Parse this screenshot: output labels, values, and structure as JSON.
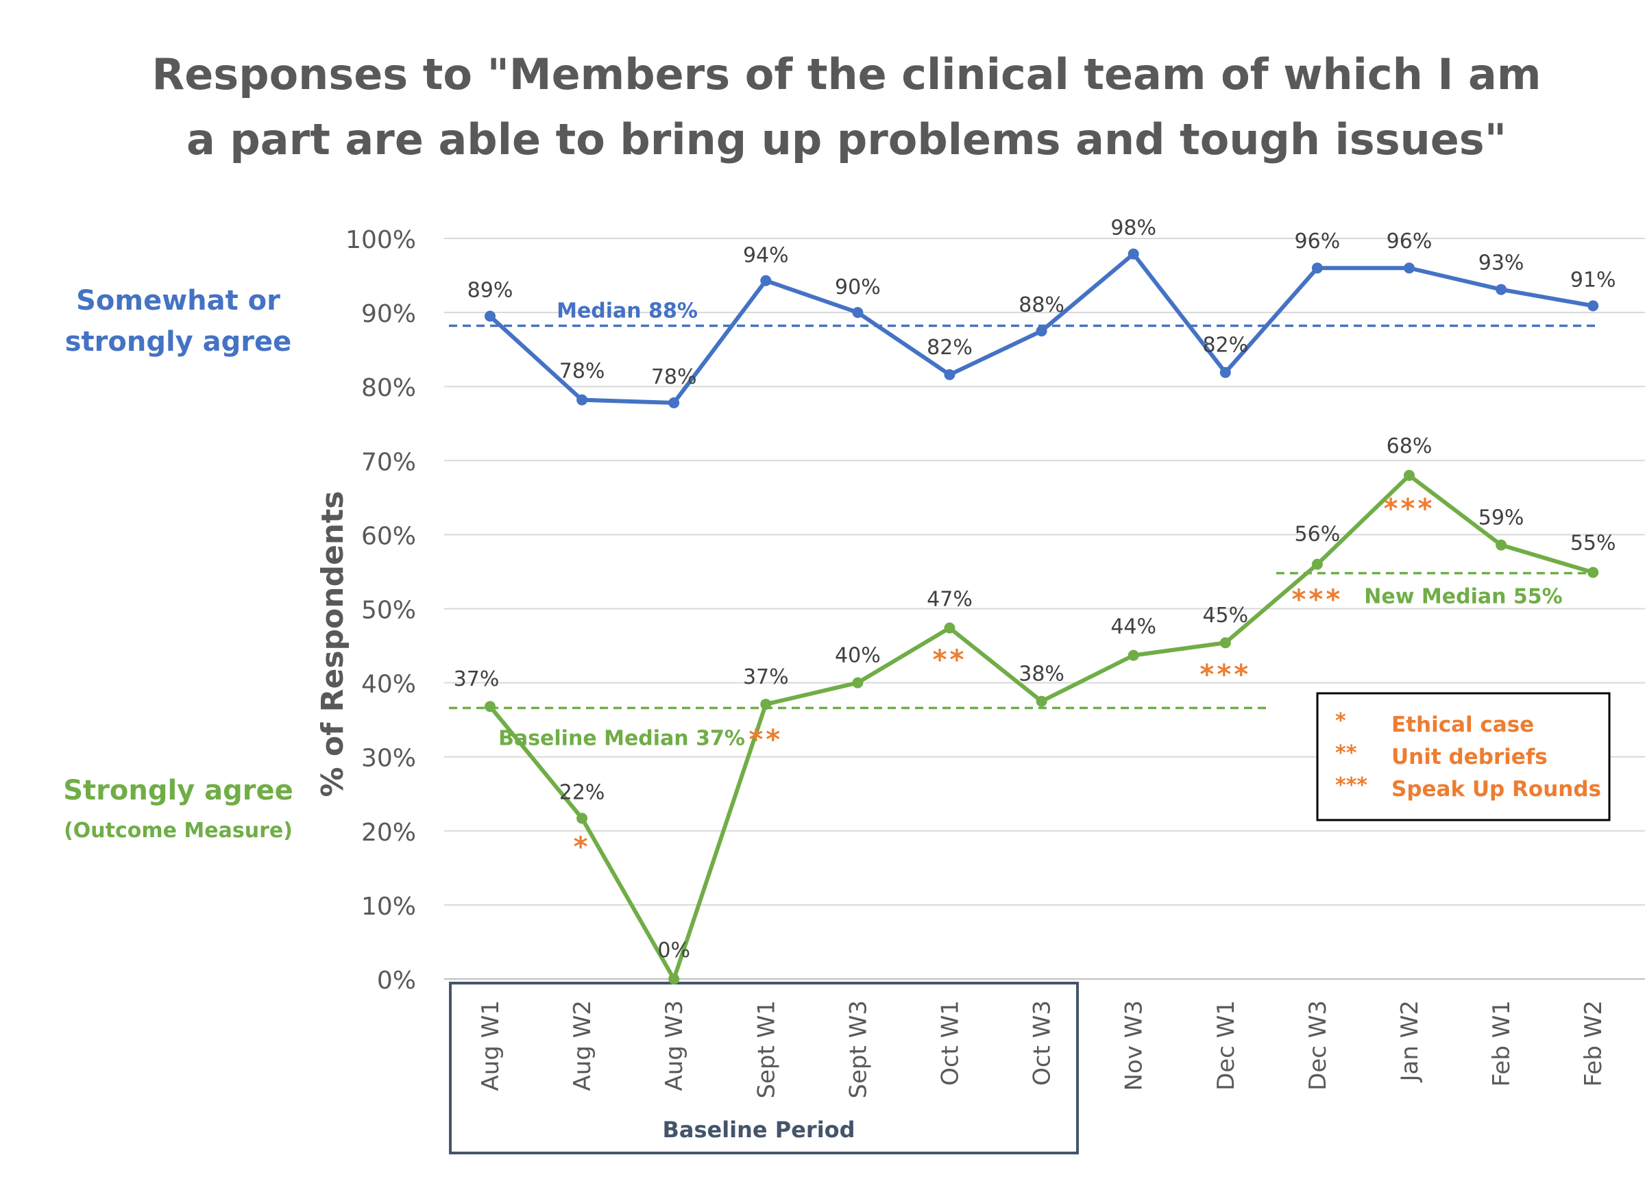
{
  "chart_data": {
    "type": "line",
    "title_lines": [
      "Responses to \"Members of the clinical team of which I am",
      "a part are able to bring up problems and tough issues\""
    ],
    "ylabel": "% of Respondents",
    "ylim": [
      0,
      100
    ],
    "y_ticks": [
      "0%",
      "10%",
      "20%",
      "30%",
      "40%",
      "50%",
      "60%",
      "70%",
      "80%",
      "90%",
      "100%"
    ],
    "grid": true,
    "categories": [
      "Aug W1",
      "Aug W2",
      "Aug W3",
      "Sept W1",
      "Sept W3",
      "Oct W1",
      "Oct W3",
      "Nov W3",
      "Dec W1",
      "Dec W3",
      "Jan W2",
      "Feb W1",
      "Feb W2"
    ],
    "series": [
      {
        "name_lines": [
          "Somewhat or",
          "strongly agree"
        ],
        "color": "#4472C4",
        "values": [
          89.5,
          78.2,
          77.8,
          94.3,
          90.0,
          81.6,
          87.5,
          97.9,
          81.9,
          96.0,
          96.0,
          93.1,
          90.9
        ],
        "labels": [
          "89%",
          "78%",
          "78%",
          "94%",
          "90%",
          "82%",
          "88%",
          "98%",
          "82%",
          "96%",
          "96%",
          "93%",
          "91%"
        ]
      },
      {
        "name_lines": [
          "Strongly agree",
          "(Outcome Measure)"
        ],
        "color": "#70AD47",
        "values": [
          36.8,
          21.7,
          0,
          37.1,
          40.0,
          47.4,
          37.5,
          43.7,
          45.4,
          56.0,
          68.0,
          58.6,
          54.9
        ],
        "labels": [
          "37%",
          "22%",
          "0%",
          "37%",
          "40%",
          "47%",
          "38%",
          "44%",
          "45%",
          "56%",
          "68%",
          "59%",
          "55%"
        ]
      }
    ],
    "reference_lines": [
      {
        "label": "Median 88%",
        "value": 88.2,
        "color": "#4472C4",
        "from": "Aug W1",
        "to": "Feb W2"
      },
      {
        "label": "Baseline Median 37%",
        "value": 36.6,
        "color": "#70AD47",
        "from": "Aug W1",
        "to": "Dec W1"
      },
      {
        "label": "New Median 55%",
        "value": 54.8,
        "color": "#70AD47",
        "from": "Dec W3",
        "to": "Feb W2"
      }
    ],
    "annotations": [
      {
        "category": "Aug W2",
        "text": "*"
      },
      {
        "category": "Sept W1",
        "text": "**"
      },
      {
        "category": "Oct W1",
        "text": "**"
      },
      {
        "category": "Dec W1",
        "text": "***"
      },
      {
        "category": "Dec W3",
        "text": "***"
      },
      {
        "category": "Jan W2",
        "text": "***"
      }
    ],
    "annotation_color": "#ED7D31",
    "key": [
      {
        "symbol": "*",
        "text": "Ethical case"
      },
      {
        "symbol": "**",
        "text": "Unit debriefs"
      },
      {
        "symbol": "***",
        "text": "Speak Up Rounds"
      }
    ],
    "baseline_period_label": "Baseline Period",
    "baseline_period_range": [
      "Aug W1",
      "Oct W3"
    ]
  }
}
